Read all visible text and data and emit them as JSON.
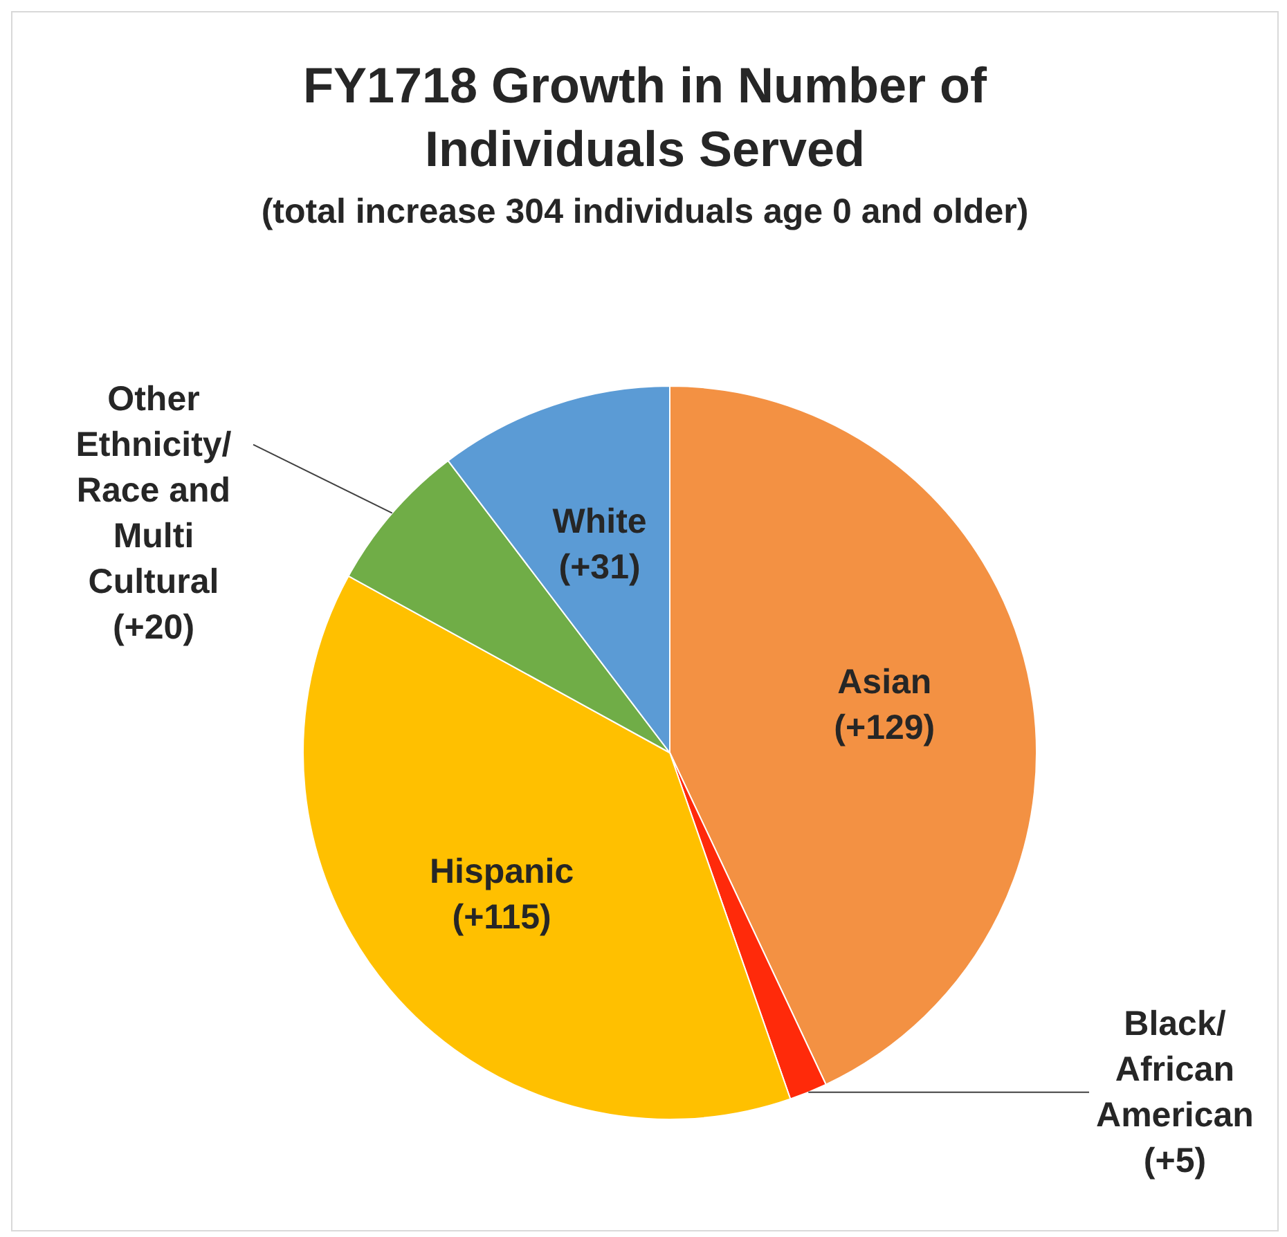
{
  "chart_data": {
    "type": "pie",
    "title": "FY1718 Growth in Number of Individuals Served",
    "subtitle": "(total increase 304 individuals age 0 and older)",
    "categories": [
      "Asian",
      "Black/ African American",
      "Hispanic",
      "Other Ethnicity/ Race and Multi Cultural",
      "White"
    ],
    "values": [
      129,
      5,
      115,
      20,
      31
    ],
    "value_labels": [
      "(+129)",
      "(+5)",
      "(+115)",
      "(+20)",
      "(+31)"
    ],
    "colors": [
      "#f39143",
      "#ff2a0a",
      "#ffc000",
      "#70ad47",
      "#5b9bd5"
    ]
  }
}
